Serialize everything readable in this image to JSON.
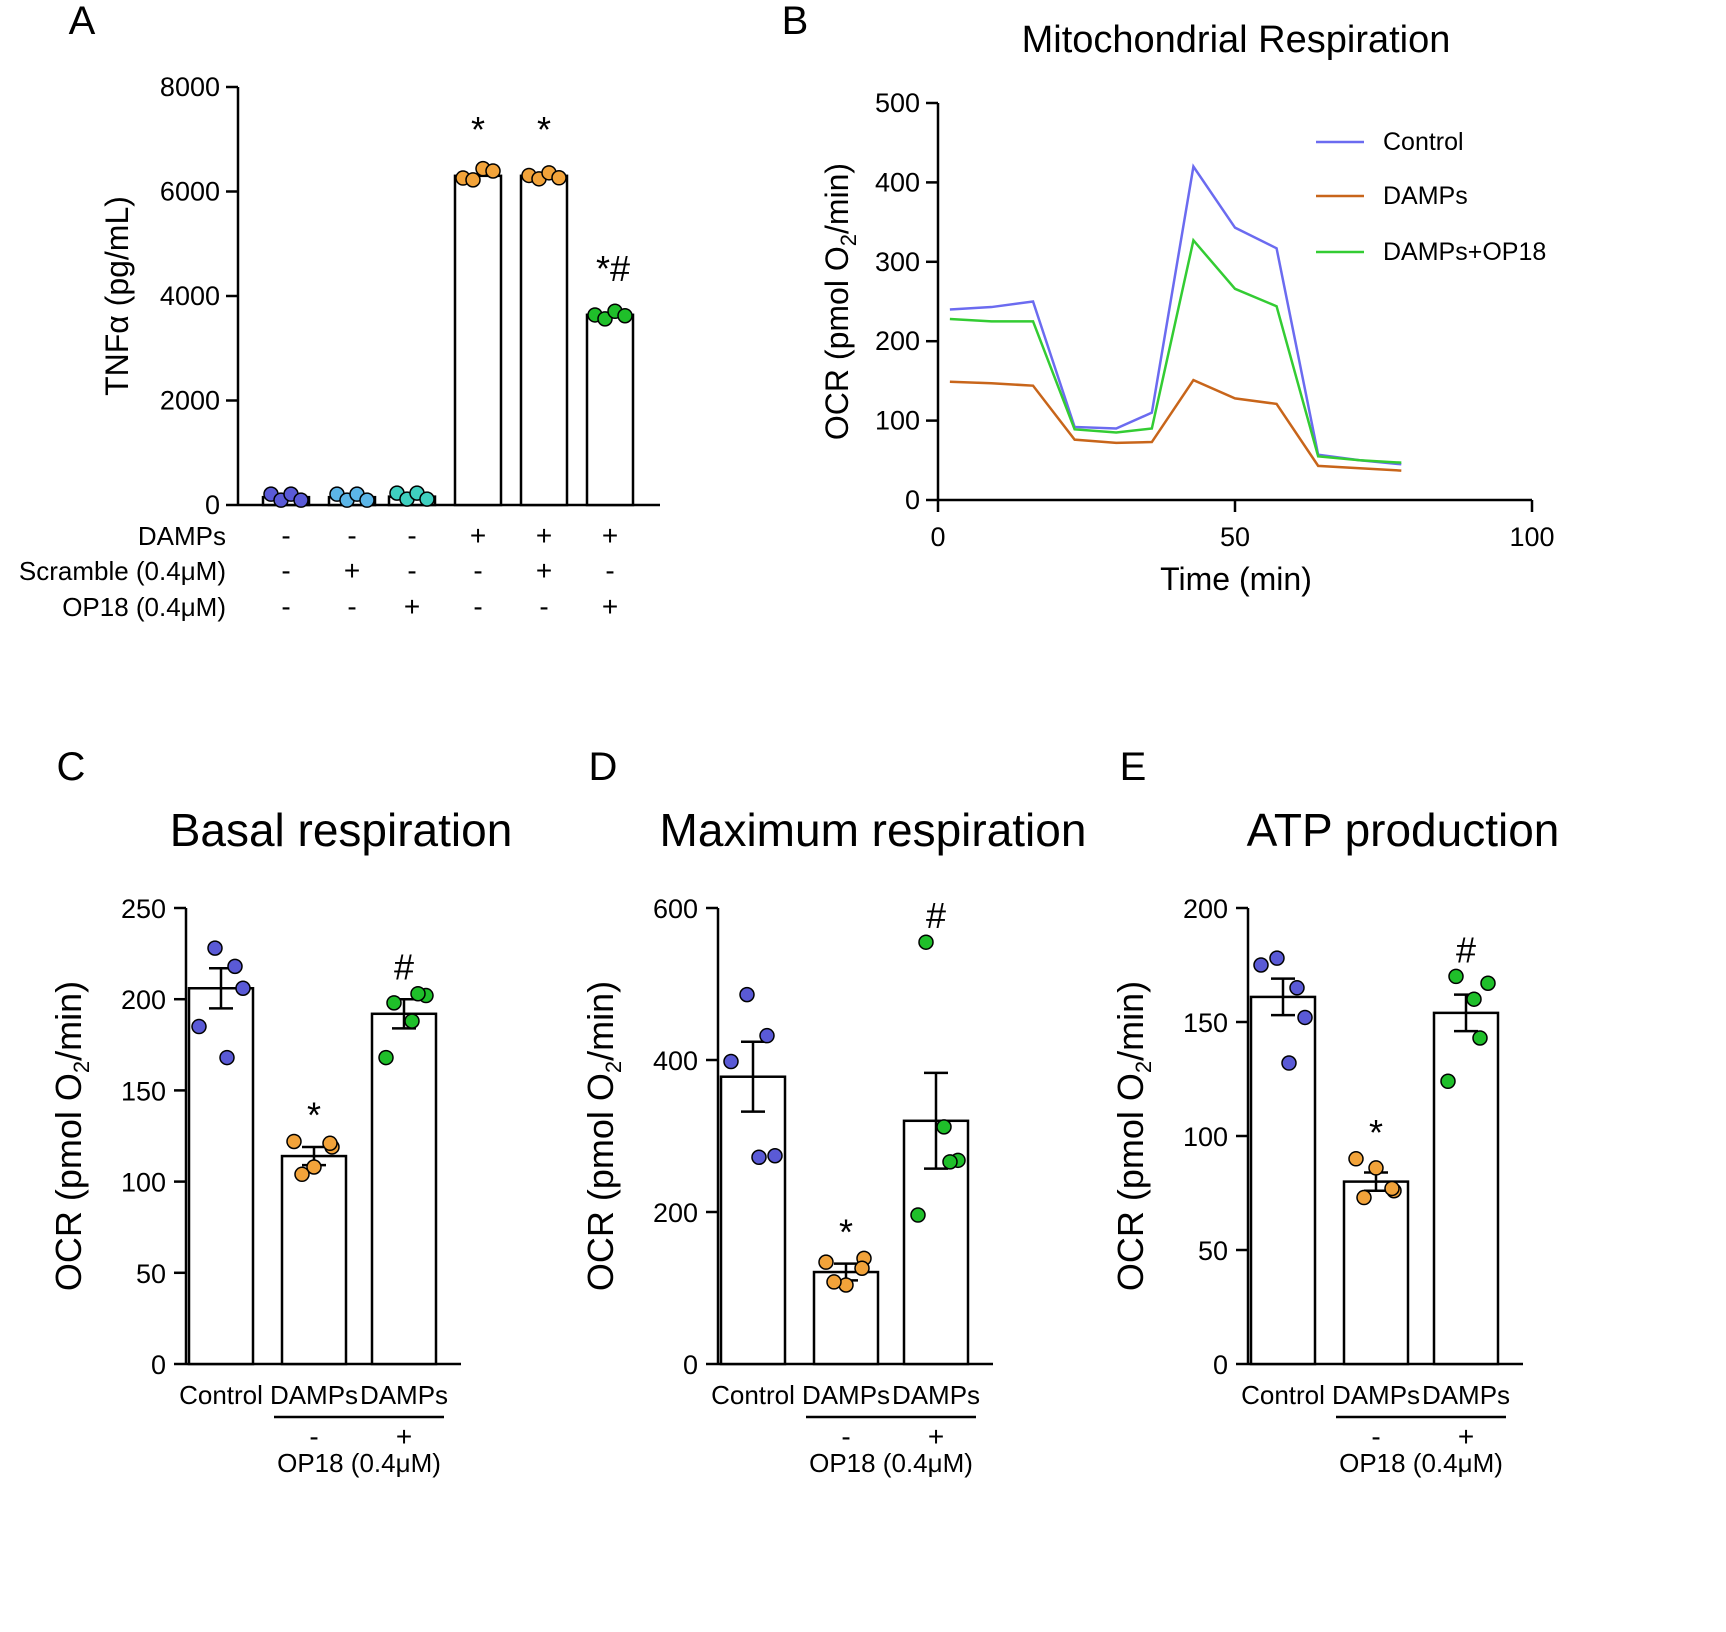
{
  "colors": {
    "control_blue": "#5a5ad6",
    "damps_orange": "#f2a33a",
    "op18_green": "#1fbf2a",
    "scramble_blue": "#5cb6e8",
    "op18only_teal": "#3fd0c0",
    "line_control": "#6b6bf0",
    "line_damps": "#c8651a",
    "line_damps_op18": "#33cc33"
  },
  "chart_data": [
    {
      "panel": "A",
      "type": "bar",
      "title": "",
      "ylabel": "TNFα (pg/mL)",
      "ylim": [
        0,
        8000
      ],
      "yticks": [
        "0",
        "2000",
        "4000",
        "6000",
        "8000"
      ],
      "values": [
        150,
        150,
        160,
        6300,
        6300,
        3640
      ],
      "points": [
        [
          150,
          150,
          150,
          150
        ],
        [
          150,
          150,
          150,
          150
        ],
        [
          170,
          170,
          170,
          170
        ],
        [
          6200,
          6280,
          6380,
          6450
        ],
        [
          6250,
          6300,
          6300,
          6320
        ],
        [
          3580,
          3620,
          3650,
          3680
        ]
      ],
      "dot_colors": [
        "#5a5ad6",
        "#5cb6e8",
        "#3fd0c0",
        "#f2a33a",
        "#f2a33a",
        "#1fbf2a"
      ],
      "significance": [
        "",
        "",
        "",
        "*",
        "*",
        "*#"
      ],
      "treatment_rows": [
        {
          "label": "DAMPs",
          "signs": [
            "-",
            "-",
            "-",
            "+",
            "+",
            "+"
          ]
        },
        {
          "label": "Scramble (0.4μM)",
          "signs": [
            "-",
            "+",
            "-",
            "-",
            "+",
            "-"
          ]
        },
        {
          "label": "OP18 (0.4μM)",
          "signs": [
            "-",
            "-",
            "+",
            "-",
            "-",
            "+"
          ]
        }
      ]
    },
    {
      "panel": "B",
      "type": "line",
      "title": "Mitochondrial Respiration",
      "xlabel": "Time (min)",
      "ylabel": "OCR (pmol O2/min)",
      "xlim": [
        0,
        100
      ],
      "ylim": [
        0,
        500
      ],
      "xticks": [
        "0",
        "50",
        "100"
      ],
      "yticks": [
        "0",
        "100",
        "200",
        "300",
        "400",
        "500"
      ],
      "x": [
        2,
        9,
        16,
        23,
        30,
        36,
        43,
        50,
        57,
        64,
        71,
        78
      ],
      "series": [
        {
          "name": "Control",
          "color": "#6b6bf0",
          "values": [
            240,
            243,
            250,
            92,
            90,
            110,
            420,
            343,
            317,
            57,
            50,
            45
          ]
        },
        {
          "name": "DAMPs",
          "color": "#c8651a",
          "values": [
            149,
            147,
            144,
            76,
            72,
            73,
            151,
            128,
            121,
            43,
            40,
            37
          ]
        },
        {
          "name": "DAMPs+OP18",
          "color": "#33cc33",
          "values": [
            228,
            225,
            225,
            89,
            85,
            90,
            327,
            266,
            244,
            55,
            50,
            47
          ]
        }
      ]
    },
    {
      "panel": "C",
      "type": "bar",
      "title": "Basal respiration",
      "ylabel": "OCR (pmol O2/min)",
      "ylim": [
        0,
        250
      ],
      "yticks": [
        "0",
        "50",
        "100",
        "150",
        "200",
        "250"
      ],
      "categories": [
        "Control",
        "DAMPs",
        "DAMPs"
      ],
      "op18_signs": [
        "-",
        "+"
      ],
      "op18_label": "OP18 (0.4μM)",
      "values": [
        206,
        114,
        192
      ],
      "sem": [
        11,
        5,
        8
      ],
      "points": [
        [
          228,
          218,
          185,
          168,
          206
        ],
        [
          122,
          108,
          119,
          104,
          121
        ],
        [
          198,
          188,
          202,
          168,
          203
        ]
      ],
      "dot_colors": [
        "#5a5ad6",
        "#f2a33a",
        "#1fbf2a"
      ],
      "significance": [
        "",
        "*",
        "#"
      ]
    },
    {
      "panel": "D",
      "type": "bar",
      "title": "Maximum respiration",
      "ylabel": "OCR (pmol O2/min)",
      "ylim": [
        0,
        600
      ],
      "yticks": [
        "0",
        "200",
        "400",
        "600"
      ],
      "categories": [
        "Control",
        "DAMPs",
        "DAMPs"
      ],
      "op18_signs": [
        "-",
        "+"
      ],
      "op18_label": "OP18 (0.4μM)",
      "values": [
        378,
        121,
        320
      ],
      "sem": [
        46,
        11,
        63
      ],
      "points": [
        [
          486,
          432,
          398,
          272,
          274
        ],
        [
          134,
          104,
          139,
          108,
          126
        ],
        [
          555,
          312,
          268,
          196,
          266
        ]
      ],
      "dot_colors": [
        "#5a5ad6",
        "#f2a33a",
        "#1fbf2a"
      ],
      "significance": [
        "",
        "*",
        "#"
      ]
    },
    {
      "panel": "E",
      "type": "bar",
      "title": "ATP production",
      "ylabel": "OCR (pmol O2/min)",
      "ylim": [
        0,
        200
      ],
      "yticks": [
        "0",
        "50",
        "100",
        "150",
        "200"
      ],
      "categories": [
        "Control",
        "DAMPs",
        "DAMPs"
      ],
      "op18_signs": [
        "-",
        "+"
      ],
      "op18_label": "OP18 (0.4μM)",
      "values": [
        161,
        80,
        154
      ],
      "sem": [
        8,
        4,
        8
      ],
      "points": [
        [
          178,
          165,
          175,
          132,
          152
        ],
        [
          90,
          86,
          76,
          73,
          77
        ],
        [
          170,
          160,
          167,
          124,
          143
        ]
      ],
      "dot_colors": [
        "#5a5ad6",
        "#f2a33a",
        "#1fbf2a"
      ],
      "significance": [
        "",
        "*",
        "#"
      ]
    }
  ],
  "panel_labels": [
    "A",
    "B",
    "C",
    "D",
    "E"
  ]
}
